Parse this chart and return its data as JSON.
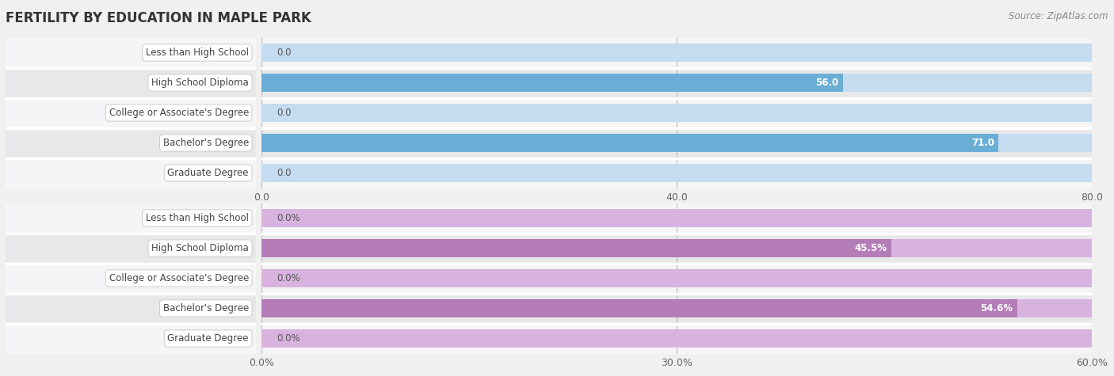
{
  "title": "FERTILITY BY EDUCATION IN MAPLE PARK",
  "source_text": "Source: ZipAtlas.com",
  "top_chart": {
    "categories": [
      "Less than High School",
      "High School Diploma",
      "College or Associate's Degree",
      "Bachelor's Degree",
      "Graduate Degree"
    ],
    "values": [
      0.0,
      56.0,
      0.0,
      71.0,
      0.0
    ],
    "bar_color_full": "#6aaed6",
    "bar_color_light": "#c5dcf0",
    "xlim": [
      0,
      80
    ],
    "xticks": [
      0.0,
      40.0,
      80.0
    ],
    "xtick_labels": [
      "0.0",
      "40.0",
      "80.0"
    ],
    "value_labels": [
      "0.0",
      "56.0",
      "0.0",
      "71.0",
      "0.0"
    ]
  },
  "bottom_chart": {
    "categories": [
      "Less than High School",
      "High School Diploma",
      "College or Associate's Degree",
      "Bachelor's Degree",
      "Graduate Degree"
    ],
    "values": [
      0.0,
      45.5,
      0.0,
      54.6,
      0.0
    ],
    "bar_color_full": "#b57db8",
    "bar_color_light": "#d9b3e0",
    "xlim": [
      0,
      60
    ],
    "xticks": [
      0.0,
      30.0,
      60.0
    ],
    "xtick_labels": [
      "0.0%",
      "30.0%",
      "60.0%"
    ],
    "value_labels": [
      "0.0%",
      "45.5%",
      "0.0%",
      "54.6%",
      "0.0%"
    ]
  },
  "bg_color": "#f0f0f0",
  "row_bg_color": "#e8e8ea",
  "row_alt_color": "#f5f5f7",
  "label_box_color": "#ffffff",
  "label_text_color": "#444444",
  "title_color": "#333333",
  "bar_height": 0.62,
  "sep_color": "#ffffff"
}
